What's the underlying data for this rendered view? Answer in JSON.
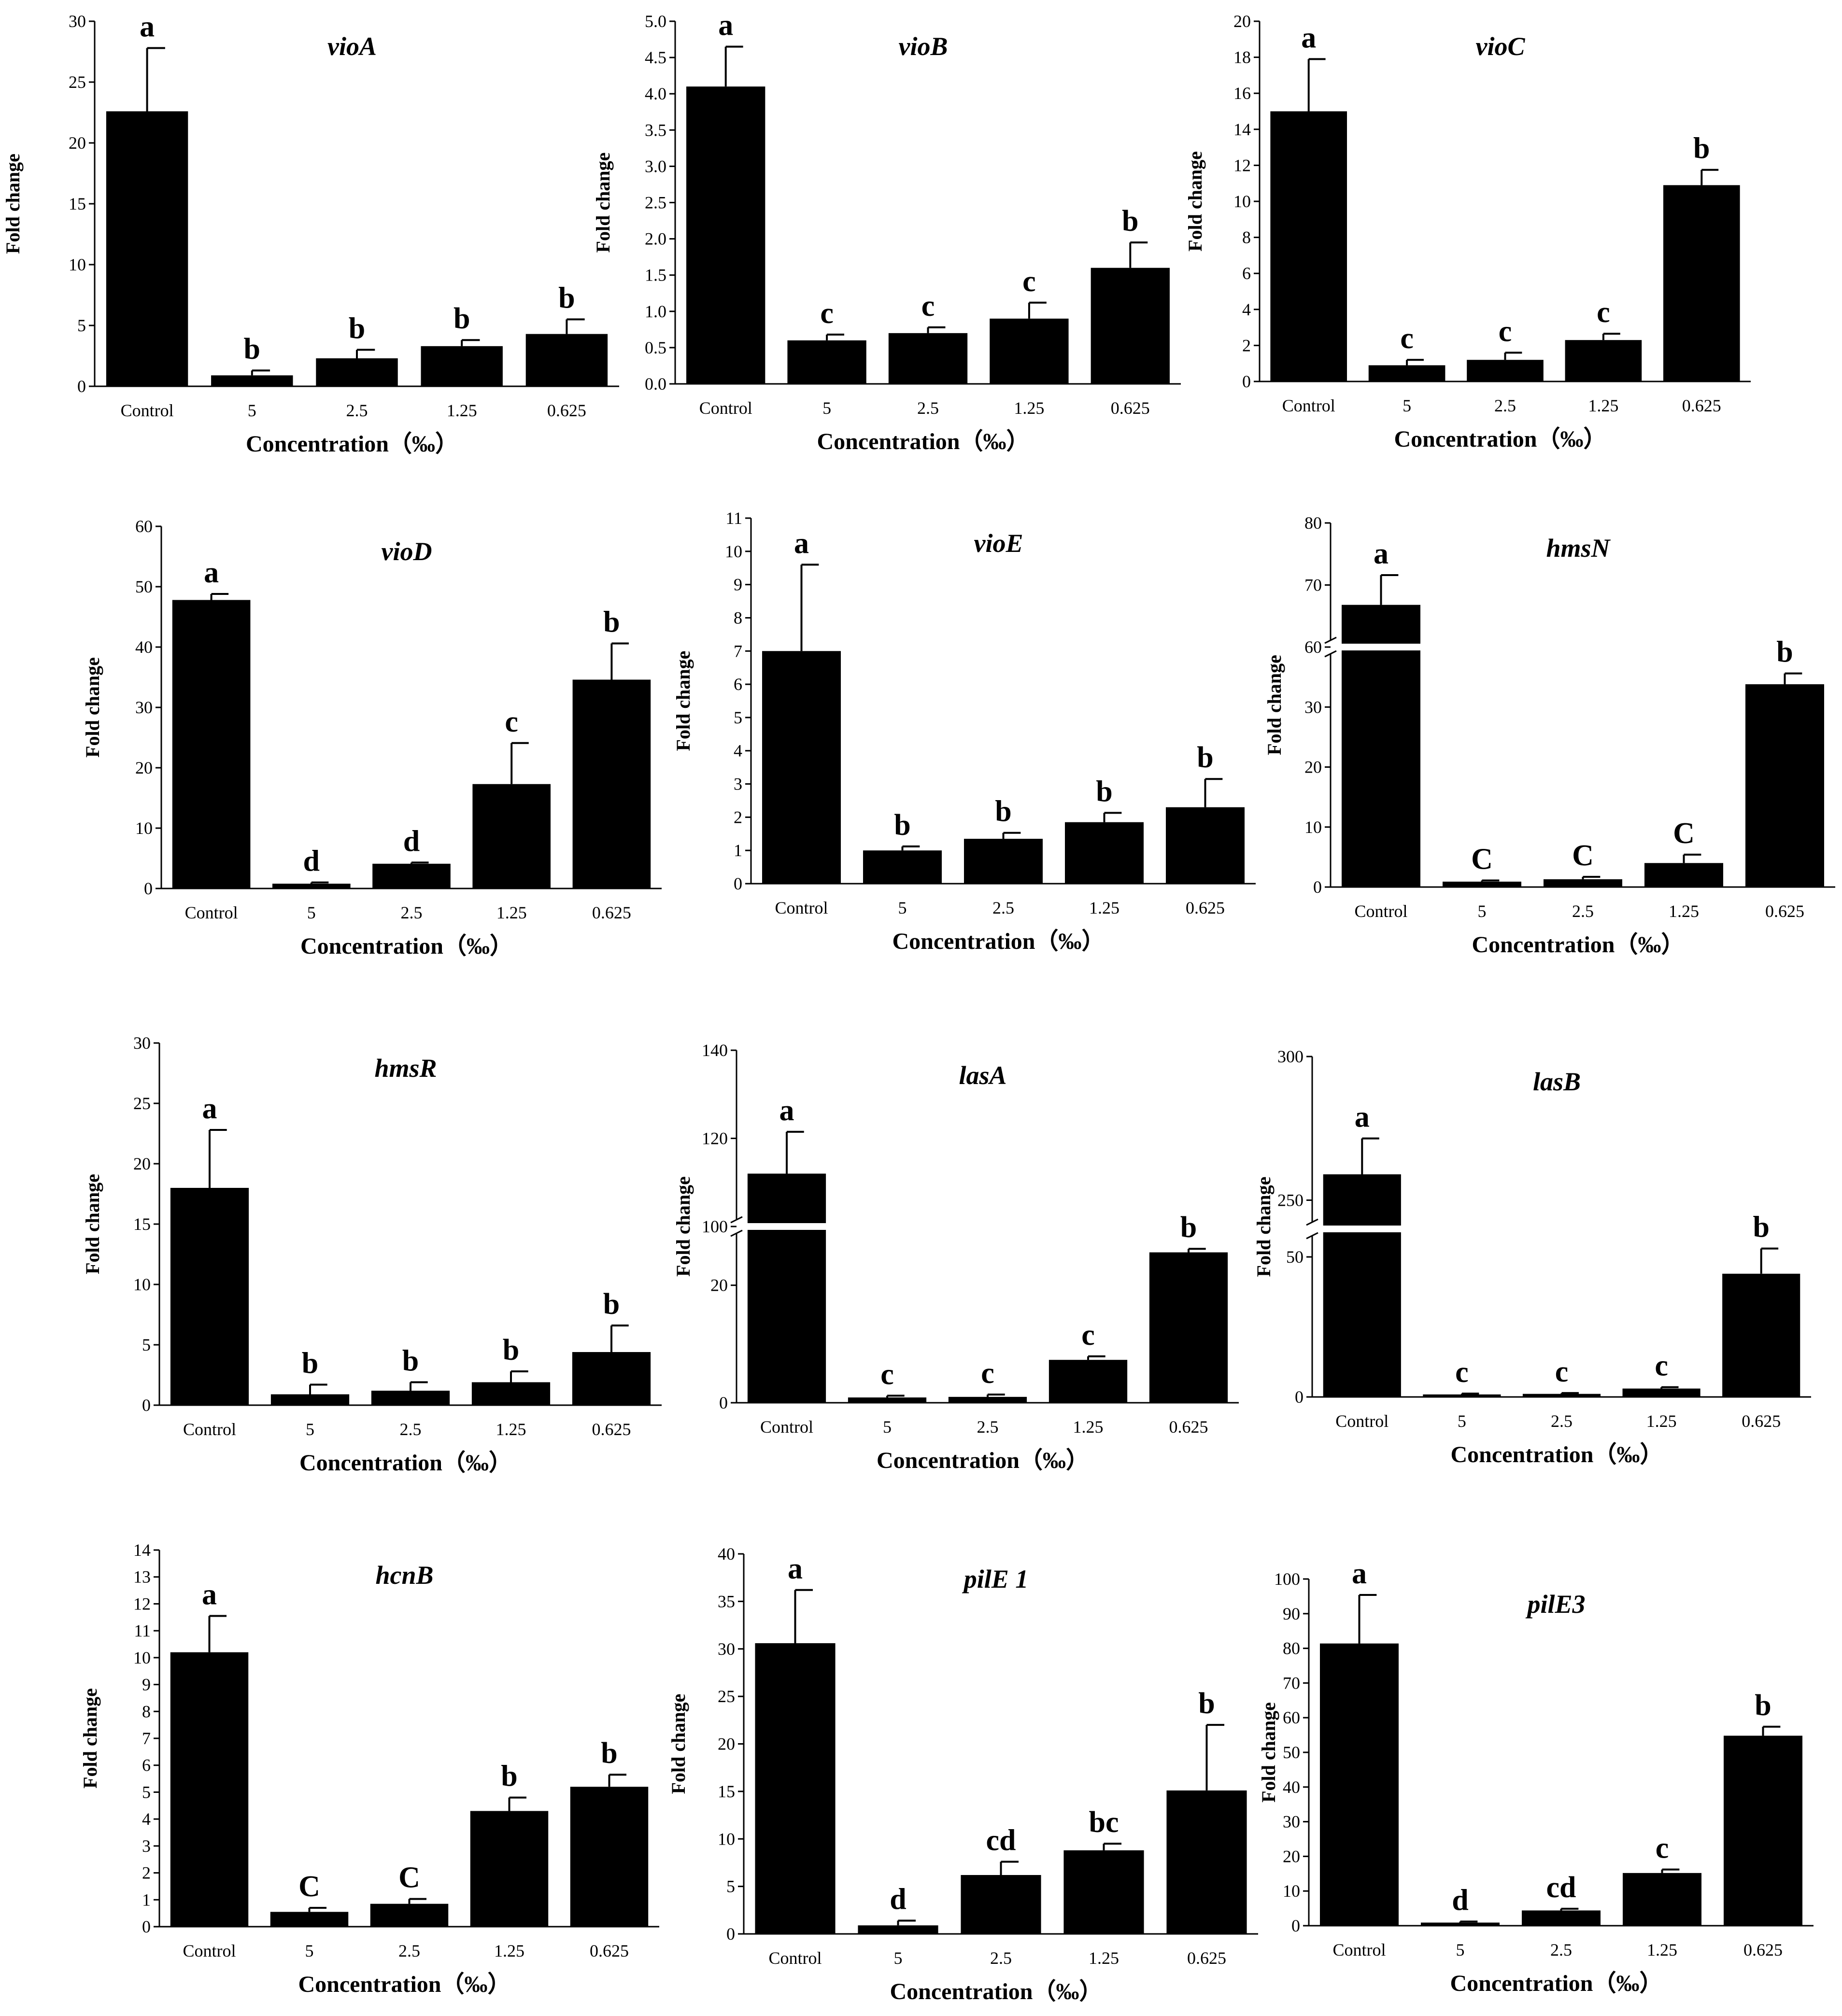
{
  "figure": {
    "x_label": "Concentration（‰）",
    "y_label": "Fold change"
  },
  "chart_data": [
    {
      "type": "bar",
      "title": "vioA",
      "categories": [
        "Control",
        "5",
        "2.5",
        "1.25",
        "0.625"
      ],
      "values": [
        22.6,
        0.9,
        2.3,
        3.3,
        4.3
      ],
      "errors": [
        5.2,
        0.4,
        0.7,
        0.5,
        1.2
      ],
      "letters": [
        "a",
        "b",
        "b",
        "b",
        "b"
      ],
      "ylim": [
        0,
        30
      ],
      "ticks": [
        "0",
        "5",
        "10",
        "15",
        "20",
        "25",
        "30"
      ],
      "xlabel": "Concentration（‰）",
      "ylabel": "Fold change"
    },
    {
      "type": "bar",
      "title": "vioB",
      "categories": [
        "Control",
        "5",
        "2.5",
        "1.25",
        "0.625"
      ],
      "values": [
        4.1,
        0.6,
        0.7,
        0.9,
        1.6
      ],
      "errors": [
        0.55,
        0.08,
        0.08,
        0.22,
        0.35
      ],
      "letters": [
        "a",
        "c",
        "c",
        "c",
        "b"
      ],
      "ylim": [
        0,
        5
      ],
      "ticks": [
        "0.0",
        "0.5",
        "1.0",
        "1.5",
        "2.0",
        "2.5",
        "3.0",
        "3.5",
        "4.0",
        "4.5",
        "5.0"
      ],
      "xlabel": "Concentration（‰）",
      "ylabel": "Fold change"
    },
    {
      "type": "bar",
      "title": "vioC",
      "categories": [
        "Control",
        "5",
        "2.5",
        "1.25",
        "0.625"
      ],
      "values": [
        15.0,
        0.9,
        1.2,
        2.3,
        10.9
      ],
      "errors": [
        2.9,
        0.3,
        0.4,
        0.35,
        0.85
      ],
      "letters": [
        "a",
        "c",
        "c",
        "c",
        "b"
      ],
      "ylim": [
        0,
        20
      ],
      "ticks": [
        "0",
        "2",
        "4",
        "6",
        "8",
        "10",
        "12",
        "14",
        "16",
        "18",
        "20"
      ],
      "xlabel": "Concentration（‰）",
      "ylabel": "Fold change"
    },
    {
      "type": "bar",
      "title": "vioD",
      "categories": [
        "Control",
        "5",
        "2.5",
        "1.25",
        "0.625"
      ],
      "values": [
        47.8,
        0.8,
        4.1,
        17.3,
        34.6
      ],
      "errors": [
        1.0,
        0.2,
        0.2,
        6.8,
        6.0
      ],
      "letters": [
        "a",
        "d",
        "d",
        "c",
        "b"
      ],
      "ylim": [
        0,
        60
      ],
      "ticks": [
        "0",
        "10",
        "20",
        "30",
        "40",
        "50",
        "60"
      ],
      "xlabel": "Concentration（‰）",
      "ylabel": "Fold change"
    },
    {
      "type": "bar",
      "title": "vioE",
      "categories": [
        "Control",
        "5",
        "2.5",
        "1.25",
        "0.625"
      ],
      "values": [
        7.0,
        1.0,
        1.35,
        1.85,
        2.3
      ],
      "errors": [
        2.6,
        0.12,
        0.18,
        0.28,
        0.85
      ],
      "letters": [
        "a",
        "b",
        "b",
        "b",
        "b"
      ],
      "ylim": [
        0,
        11
      ],
      "ticks": [
        "0",
        "1",
        "2",
        "3",
        "4",
        "5",
        "6",
        "7",
        "8",
        "9",
        "10",
        "11"
      ],
      "xlabel": "Concentration（‰）",
      "ylabel": "Fold change"
    },
    {
      "type": "bar",
      "title": "hmsN",
      "categories": [
        "Control",
        "5",
        "2.5",
        "1.25",
        "0.625"
      ],
      "values": [
        66.8,
        0.9,
        1.3,
        4.0,
        33.8
      ],
      "errors": [
        4.8,
        0.2,
        0.4,
        1.4,
        1.8
      ],
      "letters": [
        "a",
        "C",
        "C",
        "C",
        "b"
      ],
      "broken_axis": true,
      "ticks": [
        "0",
        "10",
        "20",
        "30",
        "60",
        "70",
        "80"
      ],
      "xlabel": "Concentration（‰）",
      "ylabel": "Fold change"
    },
    {
      "type": "bar",
      "title": "hmsR",
      "categories": [
        "Control",
        "5",
        "2.5",
        "1.25",
        "0.625"
      ],
      "values": [
        18.0,
        0.9,
        1.2,
        1.9,
        4.4
      ],
      "errors": [
        4.8,
        0.8,
        0.7,
        0.9,
        2.2
      ],
      "letters": [
        "a",
        "b",
        "b",
        "b",
        "b"
      ],
      "ylim": [
        0,
        30
      ],
      "ticks": [
        "0",
        "5",
        "10",
        "15",
        "20",
        "25",
        "30"
      ],
      "xlabel": "Concentration（‰）",
      "ylabel": "Fold change"
    },
    {
      "type": "bar",
      "title": "lasA",
      "categories": [
        "Control",
        "5",
        "2.5",
        "1.25",
        "0.625"
      ],
      "values": [
        112,
        0.9,
        1.0,
        7.3,
        25.6
      ],
      "errors": [
        9.5,
        0.3,
        0.4,
        0.6,
        0.6
      ],
      "letters": [
        "a",
        "c",
        "c",
        "c",
        "b"
      ],
      "broken_axis": true,
      "ticks": [
        "0",
        "20",
        "100",
        "120",
        "140"
      ],
      "xlabel": "Concentration（‰）",
      "ylabel": "Fold change"
    },
    {
      "type": "bar",
      "title": "lasB",
      "categories": [
        "Control",
        "5",
        "2.5",
        "1.25",
        "0.625"
      ],
      "values": [
        259,
        0.9,
        1.1,
        3.0,
        44.0
      ],
      "errors": [
        12.5,
        0.3,
        0.3,
        0.5,
        9.0
      ],
      "letters": [
        "a",
        "c",
        "c",
        "c",
        "b"
      ],
      "broken_axis": true,
      "ticks": [
        "0",
        "50",
        "250",
        "300"
      ],
      "xlabel": "Concentration（‰）",
      "ylabel": "Fold change"
    },
    {
      "type": "bar",
      "title": "hcnB",
      "categories": [
        "Control",
        "5",
        "2.5",
        "1.25",
        "0.625"
      ],
      "values": [
        10.2,
        0.55,
        0.85,
        4.3,
        5.2
      ],
      "errors": [
        1.35,
        0.15,
        0.18,
        0.5,
        0.45
      ],
      "letters": [
        "a",
        "C",
        "C",
        "b",
        "b"
      ],
      "ylim": [
        0,
        14
      ],
      "ticks": [
        "0",
        "1",
        "2",
        "3",
        "4",
        "5",
        "6",
        "7",
        "8",
        "9",
        "10",
        "11",
        "12",
        "13",
        "14"
      ],
      "xlabel": "Concentration（‰）",
      "ylabel": "Fold change"
    },
    {
      "type": "bar",
      "title": "pilE 1",
      "categories": [
        "Control",
        "5",
        "2.5",
        "1.25",
        "0.625"
      ],
      "values": [
        30.6,
        0.9,
        6.2,
        8.8,
        15.1
      ],
      "errors": [
        5.6,
        0.5,
        1.4,
        0.7,
        6.9
      ],
      "letters": [
        "a",
        "d",
        "cd",
        "bc",
        "b"
      ],
      "ylim": [
        0,
        40
      ],
      "ticks": [
        "0",
        "5",
        "10",
        "15",
        "20",
        "25",
        "30",
        "35",
        "40"
      ],
      "xlabel": "Concentration（‰）",
      "ylabel": "Fold change"
    },
    {
      "type": "bar",
      "title": "pilE3",
      "categories": [
        "Control",
        "5",
        "2.5",
        "1.25",
        "0.625"
      ],
      "values": [
        81.4,
        0.9,
        4.4,
        15.2,
        54.8
      ],
      "errors": [
        14.0,
        0.3,
        0.5,
        1.0,
        2.6
      ],
      "letters": [
        "a",
        "d",
        "cd",
        "c",
        "b"
      ],
      "ylim": [
        0,
        100
      ],
      "ticks": [
        "0",
        "10",
        "20",
        "30",
        "40",
        "50",
        "60",
        "70",
        "80",
        "90",
        "100"
      ],
      "xlabel": "Concentration（‰）",
      "ylabel": "Fold change"
    }
  ]
}
